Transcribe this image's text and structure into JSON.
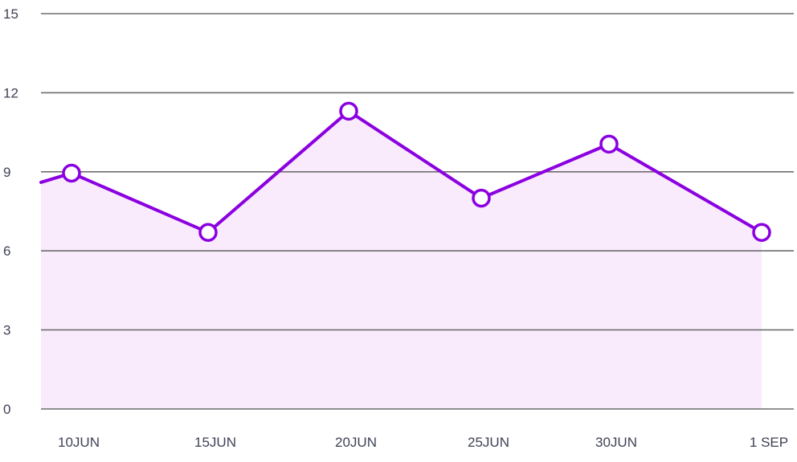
{
  "chart_data": {
    "type": "area",
    "title": "",
    "xlabel": "",
    "ylabel": "",
    "categories": [
      "10JUN",
      "15JUN",
      "20JUN",
      "25JUN",
      "30JUN",
      "1 SEP"
    ],
    "series": [
      {
        "values": [
          8.95,
          6.7,
          11.3,
          8.0,
          10.05,
          6.7
        ],
        "start_value": 8.6
      }
    ],
    "y_ticks": [
      0,
      3,
      6,
      9,
      12,
      15
    ],
    "ylim": [
      0,
      15
    ],
    "grid": true,
    "colors": {
      "line": "#8b00e0",
      "fill": "#f9eafc",
      "marker_fill": "#ffffff",
      "grid": "#6e6e6e",
      "text": "#3f4257"
    }
  }
}
